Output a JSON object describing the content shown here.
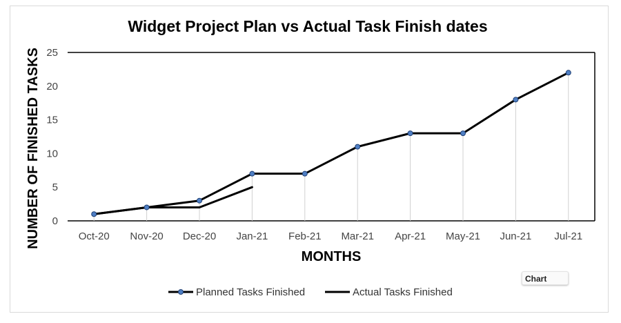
{
  "chart_data": {
    "type": "line",
    "title": "Widget Project Plan vs Actual Task Finish dates",
    "xlabel": "MONTHS",
    "ylabel": "NUMBER OF FINISHED TASKS",
    "categories": [
      "Oct-20",
      "Nov-20",
      "Dec-20",
      "Jan-21",
      "Feb-21",
      "Mar-21",
      "Apr-21",
      "May-21",
      "Jun-21",
      "Jul-21"
    ],
    "ylim": [
      0,
      25
    ],
    "yticks": [
      0,
      5,
      10,
      15,
      20,
      25
    ],
    "grid": false,
    "drop_lines": true,
    "legend_position": "bottom",
    "series": [
      {
        "name": "Planned Tasks Finished",
        "color": "#000000",
        "marker": "circle",
        "marker_color": "#4f7fc4",
        "values": [
          1,
          2,
          3,
          7,
          7,
          11,
          13,
          13,
          18,
          22
        ]
      },
      {
        "name": "Actual Tasks Finished",
        "color": "#000000",
        "marker": "none",
        "values": [
          1,
          2,
          2,
          5,
          null,
          null,
          null,
          null,
          null,
          null
        ]
      }
    ]
  },
  "chart_tag": "Chart"
}
